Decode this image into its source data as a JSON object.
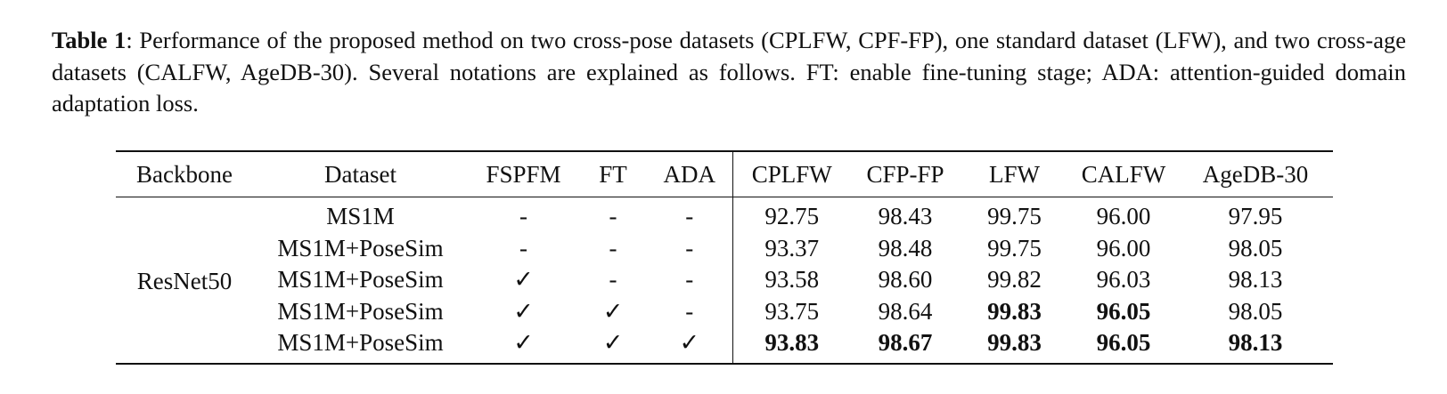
{
  "caption": {
    "label": "Table 1",
    "text": ": Performance of the proposed method on two cross-pose datasets (CPLFW, CPF-FP), one standard dataset (LFW), and two cross-age datasets (CALFW, AgeDB-30). Several notations are explained as follows. FT: enable fine-tuning stage; ADA: attention-guided domain adaptation loss."
  },
  "table": {
    "header": [
      "Backbone",
      "Dataset",
      "FSPFM",
      "FT",
      "ADA",
      "CPLFW",
      "CFP-FP",
      "LFW",
      "CALFW",
      "AgeDB-30"
    ],
    "backbone": "ResNet50",
    "rows": [
      [
        "MS1M",
        "-",
        "-",
        "-",
        "92.75",
        "98.43",
        "99.75",
        "96.00",
        "97.95"
      ],
      [
        "MS1M+PoseSim",
        "-",
        "-",
        "-",
        "93.37",
        "98.48",
        "99.75",
        "96.00",
        "98.05"
      ],
      [
        "MS1M+PoseSim",
        "✓",
        "-",
        "-",
        "93.58",
        "98.60",
        "99.82",
        "96.03",
        "98.13"
      ],
      [
        "MS1M+PoseSim",
        "✓",
        "✓",
        "-",
        "93.75",
        "98.64",
        "99.83",
        "96.05",
        "98.05"
      ],
      [
        "MS1M+PoseSim",
        "✓",
        "✓",
        "✓",
        "93.83",
        "98.67",
        "99.83",
        "96.05",
        "98.13"
      ]
    ],
    "bold": [
      [
        3,
        6
      ],
      [
        3,
        7
      ],
      [
        4,
        4
      ],
      [
        4,
        5
      ],
      [
        4,
        6
      ],
      [
        4,
        7
      ],
      [
        4,
        8
      ]
    ]
  }
}
